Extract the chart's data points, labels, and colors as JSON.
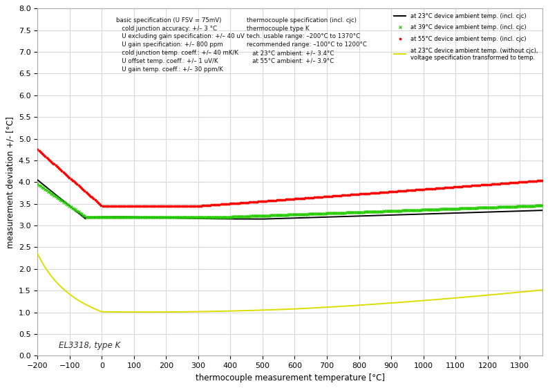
{
  "xlabel": "thermocouple measurement temperature [°C]",
  "ylabel": "measurement deviation +/- [°C]",
  "xlim": [
    -200,
    1370
  ],
  "ylim": [
    0,
    8
  ],
  "xticks": [
    -200,
    -100,
    0,
    100,
    200,
    300,
    400,
    500,
    600,
    700,
    800,
    900,
    1000,
    1100,
    1200,
    1300
  ],
  "yticks": [
    0,
    0.5,
    1,
    1.5,
    2,
    2.5,
    3,
    3.5,
    4,
    4.5,
    5,
    5.5,
    6,
    6.5,
    7,
    7.5,
    8
  ],
  "annotation_label": "EL3318, type K",
  "legend_entries": [
    "at 23°C device ambient temp. (incl. cjc)",
    "at 39°C device ambient temp. (incl. cjc)",
    "at 55°C device ambient temp. (incl. cjc)",
    "at 23°C device ambient temp. (without cjc),\nvoltage specification transformed to temp."
  ],
  "background_color": "#ffffff",
  "grid_color": "#d8d8d8",
  "text_block1_lines": [
    "basic specification (U FSV = 75mV)",
    "   cold junction accuracy: +/– 3 °C",
    "   U excluding gain specification: +/– 40 uV",
    "   U gain specification: +/– 800 ppm",
    "   cold junction temp. coeff.: +/– 40 mK/K",
    "   U offset temp. coeff.: +/– 1 uV/K",
    "   U gain temp. coeff.: +/– 30 ppm/K"
  ],
  "text_block2_lines": [
    "thermocouple specification (incl. cjc)",
    "thermocouple type K",
    "tech. usable range: –200°C to 1370°C",
    "recommended range: –100°C to 1200°C",
    "   at 23°C ambient: +/– 3.4°C",
    "   at 55°C ambient: +/– 3.9°C"
  ]
}
